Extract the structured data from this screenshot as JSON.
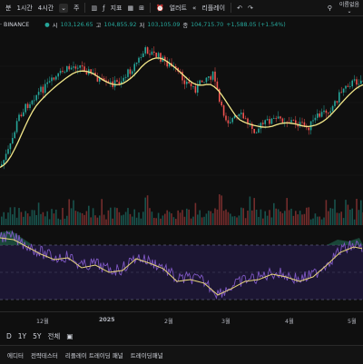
{
  "toolbar": {
    "items": [
      "분",
      "1시간",
      "4시간",
      "주"
    ],
    "indicators_label": "지표",
    "alert_label": "얼러트",
    "replay_label": "리플레이",
    "username": "이름없음"
  },
  "legend": {
    "symbol": "· BINANCE",
    "open_label": "시",
    "open": "103,126.65",
    "high_label": "고",
    "high": "104,855.92",
    "low_label": "저",
    "low": "103,105.09",
    "close_label": "종",
    "close": "104,715.70",
    "change": "+1,588.05 (+1.54%)"
  },
  "x_axis": [
    {
      "label": "12월"
    },
    {
      "label": "2025"
    },
    {
      "label": "2월"
    },
    {
      "label": "3월"
    },
    {
      "label": "4월"
    },
    {
      "label": "5월"
    }
  ],
  "ranges": [
    "D",
    "1Y",
    "5Y",
    "전체"
  ],
  "panels": [
    "에디터",
    "전략테스터",
    "리플레이 트레이딩 패널",
    "트레이딩패널"
  ],
  "colors": {
    "up": "#26a69a",
    "down": "#ef5350",
    "ma": "#f3e88a",
    "rsi": "#7e57c2",
    "rsi_ma": "#e8d67a"
  }
}
